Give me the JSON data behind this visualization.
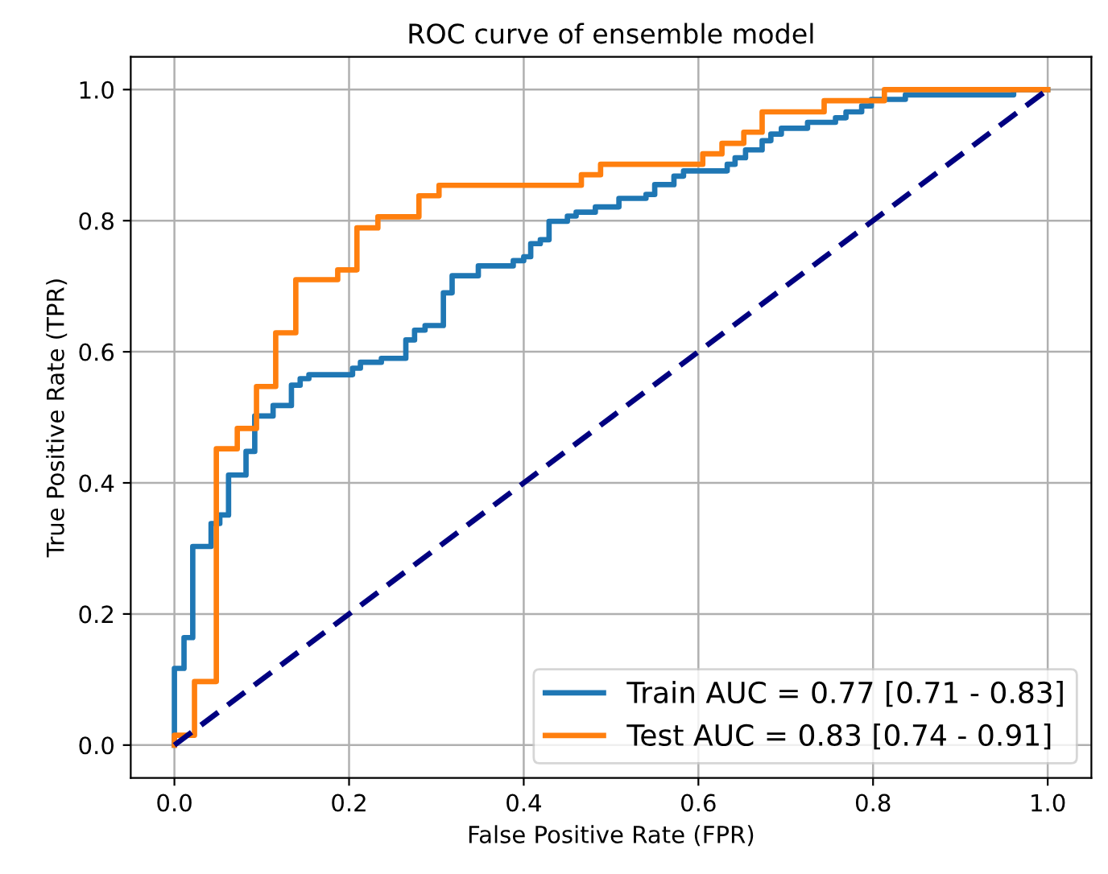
{
  "chart_data": {
    "type": "step",
    "title": "ROC curve of ensemble model",
    "xlabel": "False Positive Rate (FPR)",
    "ylabel": "True Positive Rate (TPR)",
    "xlim": [
      -0.05,
      1.05
    ],
    "ylim": [
      -0.05,
      1.05
    ],
    "xticks": [
      {
        "value": 0,
        "label": "0.0"
      },
      {
        "value": 0.2,
        "label": "0.2"
      },
      {
        "value": 0.4,
        "label": "0.4"
      },
      {
        "value": 0.6,
        "label": "0.6"
      },
      {
        "value": 0.8,
        "label": "0.8"
      },
      {
        "value": 1,
        "label": "1.0"
      }
    ],
    "yticks": [
      {
        "value": 0,
        "label": "0.0"
      },
      {
        "value": 0.2,
        "label": "0.2"
      },
      {
        "value": 0.4,
        "label": "0.4"
      },
      {
        "value": 0.6,
        "label": "0.6"
      },
      {
        "value": 0.8,
        "label": "0.8"
      },
      {
        "value": 1,
        "label": "1.0"
      }
    ],
    "grid": true,
    "legend": "bottom right",
    "marker": "none",
    "series": [
      {
        "name": "Train AUC = 0.77 [0.71 - 0.83]",
        "color": "#1f77b4",
        "x": [
          0,
          0,
          0.011,
          0.021,
          0.042,
          0.052,
          0.062,
          0.082,
          0.092,
          0.113,
          0.134,
          0.144,
          0.154,
          0.204,
          0.213,
          0.237,
          0.265,
          0.275,
          0.287,
          0.308,
          0.318,
          0.348,
          0.388,
          0.4,
          0.408,
          0.419,
          0.429,
          0.45,
          0.46,
          0.482,
          0.509,
          0.54,
          0.55,
          0.572,
          0.583,
          0.633,
          0.642,
          0.654,
          0.673,
          0.683,
          0.695,
          0.725,
          0.757,
          0.769,
          0.787,
          0.798,
          0.837,
          0.961,
          1
        ],
        "values": [
          0,
          0.117,
          0.164,
          0.303,
          0.338,
          0.351,
          0.412,
          0.448,
          0.502,
          0.518,
          0.549,
          0.559,
          0.565,
          0.575,
          0.584,
          0.59,
          0.618,
          0.633,
          0.64,
          0.69,
          0.716,
          0.731,
          0.739,
          0.745,
          0.765,
          0.771,
          0.799,
          0.807,
          0.813,
          0.821,
          0.834,
          0.84,
          0.855,
          0.868,
          0.876,
          0.886,
          0.896,
          0.908,
          0.922,
          0.932,
          0.941,
          0.95,
          0.957,
          0.966,
          0.975,
          0.985,
          0.992,
          1,
          1
        ]
      },
      {
        "name": "Test AUC = 0.83 [0.74 - 0.91]",
        "color": "#ff7f0e",
        "x": [
          0,
          0,
          0.023,
          0.048,
          0.072,
          0.094,
          0.116,
          0.139,
          0.187,
          0.209,
          0.233,
          0.28,
          0.303,
          0.466,
          0.488,
          0.605,
          0.627,
          0.652,
          0.673,
          0.744,
          0.813,
          1
        ],
        "values": [
          0,
          0.015,
          0.097,
          0.452,
          0.483,
          0.547,
          0.629,
          0.71,
          0.725,
          0.789,
          0.806,
          0.838,
          0.854,
          0.87,
          0.886,
          0.902,
          0.918,
          0.935,
          0.966,
          0.983,
          1,
          1
        ]
      },
      {
        "type": "line",
        "line_style": "dashed",
        "color": "#000080",
        "x": [
          0,
          1
        ],
        "values": [
          0,
          1
        ]
      }
    ]
  }
}
